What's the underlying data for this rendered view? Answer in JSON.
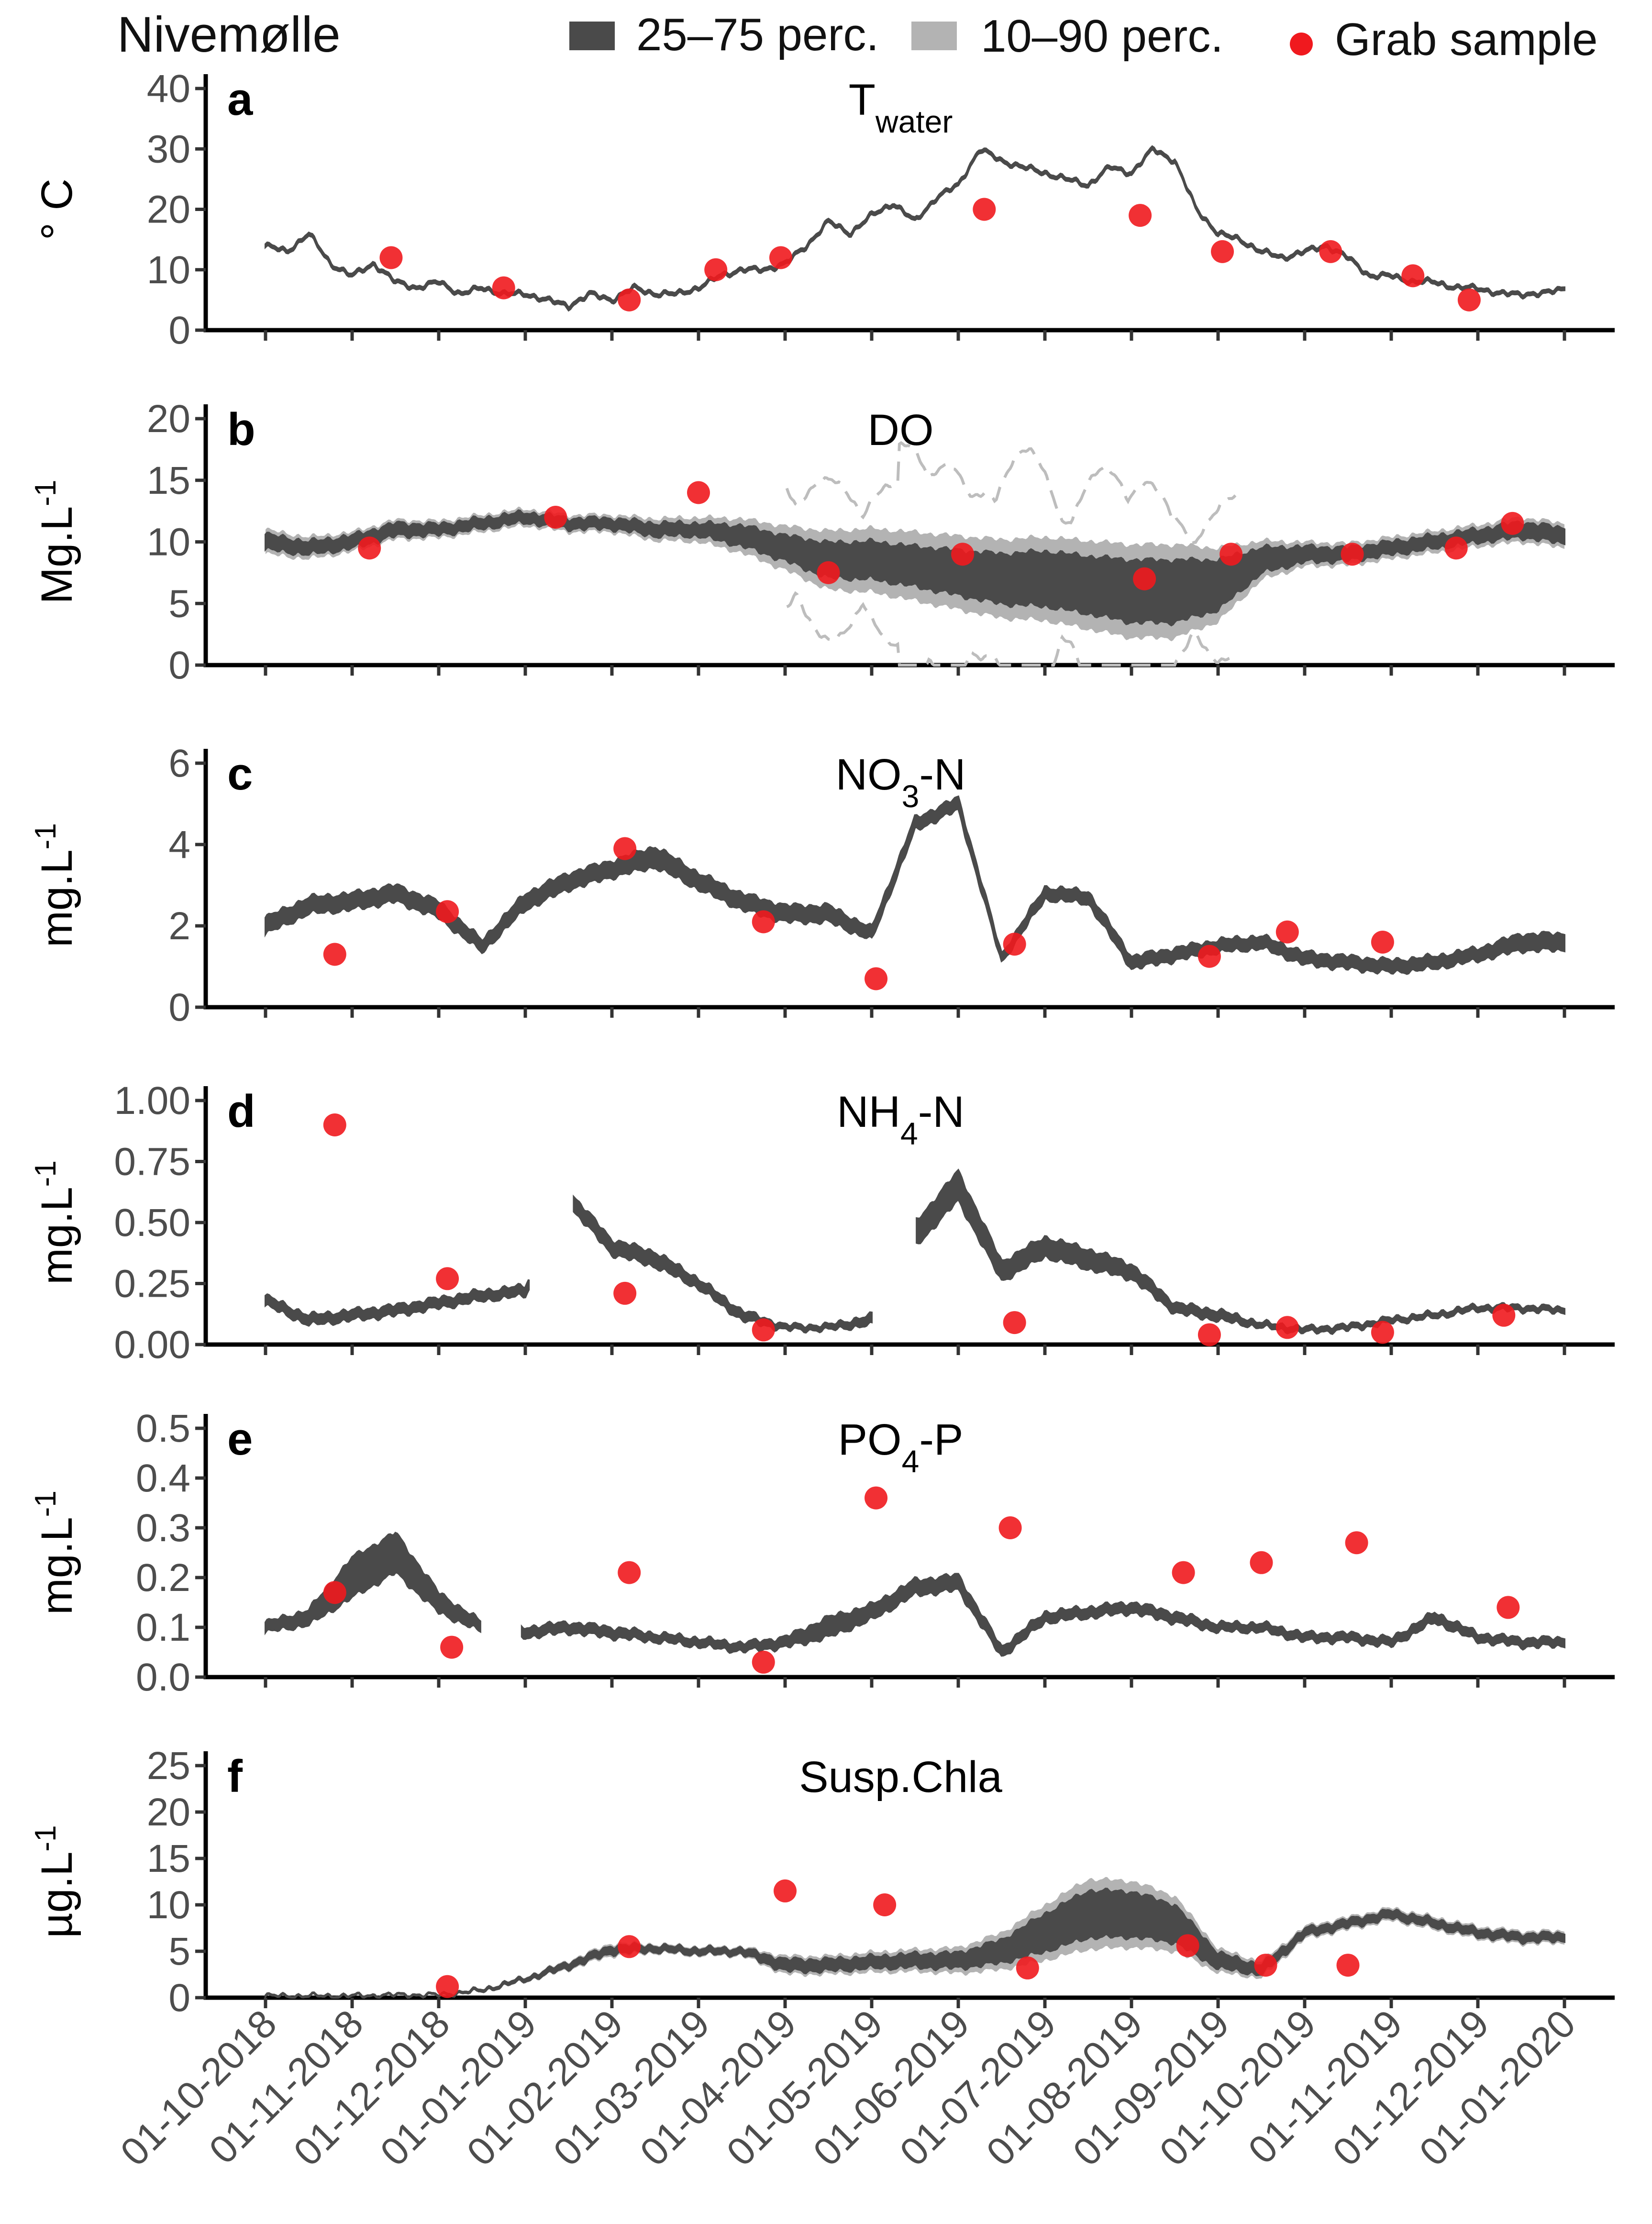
{
  "site": "Nivemølle",
  "legend": {
    "iqr_label": "25–75 perc.",
    "p1090_label": "10–90 perc.",
    "grab_label": "Grab sample"
  },
  "colors": {
    "iqr": "#4a4a4a",
    "p1090": "#b3b3b3",
    "grab": "#f0191e",
    "dashed": "#bdbdbd"
  },
  "x_ticks": [
    "01-10-2018",
    "01-11-2018",
    "01-12-2018",
    "01-01-2019",
    "01-02-2019",
    "01-03-2019",
    "01-04-2019",
    "01-05-2019",
    "01-06-2019",
    "01-07-2019",
    "01-08-2019",
    "01-09-2019",
    "01-10-2019",
    "01-11-2019",
    "01-12-2019",
    "01-01-2020"
  ],
  "chart_data": [
    {
      "type": "area",
      "panel": "a",
      "title": "Twater",
      "title_main": "T",
      "title_sub": "water",
      "ylabel": "° C",
      "ylim": [
        0,
        40
      ],
      "yticks": [
        "0",
        "10",
        "20",
        "30",
        "40"
      ],
      "series_months": [
        0,
        0.25,
        0.5,
        0.75,
        1,
        1.25,
        1.5,
        1.75,
        2,
        2.25,
        2.5,
        2.75,
        3,
        3.25,
        3.5,
        3.75,
        4,
        4.25,
        4.5,
        4.75,
        5,
        5.25,
        5.5,
        5.75,
        6,
        6.25,
        6.5,
        6.75,
        7,
        7.25,
        7.5,
        7.75,
        8,
        8.25,
        8.5,
        8.75,
        9,
        9.25,
        9.5,
        9.75,
        10,
        10.25,
        10.5,
        10.75,
        11,
        11.25,
        11.5,
        11.75,
        12,
        12.25,
        12.5,
        12.75,
        13,
        13.25,
        13.5,
        13.75,
        14,
        14.25,
        14.5,
        14.75,
        15
      ],
      "median": [
        14,
        13,
        16,
        11,
        9,
        11,
        8,
        7,
        8,
        6,
        7,
        6,
        6,
        5,
        4,
        6,
        5,
        7,
        6,
        6,
        7,
        9,
        10,
        10,
        11,
        14,
        18,
        16,
        19,
        21,
        18,
        22,
        24,
        30,
        28,
        27,
        26,
        25,
        24,
        27,
        26,
        30,
        28,
        20,
        16,
        15,
        13,
        12,
        13,
        14,
        12,
        9,
        9,
        8,
        8,
        7,
        7,
        6,
        6,
        6,
        7
      ],
      "grab_months": [
        1.45,
        2.75,
        4.2,
        5.2,
        5.95,
        8.3,
        10.1,
        11.05,
        12.3,
        13.25,
        13.9
      ],
      "grab_values": [
        12,
        7,
        5,
        10,
        12,
        20,
        19,
        13,
        13,
        9,
        5
      ]
    },
    {
      "type": "area",
      "panel": "b",
      "title": "DO",
      "ylabel": "Mg.L-1",
      "ylabel_main": "Mg.L",
      "ylabel_sup": "-1",
      "ylim": [
        0,
        20
      ],
      "yticks": [
        "0",
        "5",
        "10",
        "15",
        "20"
      ],
      "series_months": [
        0,
        0.5,
        1,
        1.5,
        2,
        2.5,
        3,
        3.5,
        4,
        4.5,
        5,
        5.5,
        6,
        6.5,
        7,
        7.5,
        8,
        8.5,
        9,
        9.5,
        10,
        10.5,
        11,
        11.5,
        12,
        12.5,
        13,
        13.5,
        14,
        14.5,
        15
      ],
      "median": [
        10,
        9.5,
        10,
        11,
        11,
        11.5,
        12,
        11.5,
        11.5,
        11,
        11,
        10.5,
        9.5,
        8.5,
        8.5,
        8,
        7.5,
        7,
        7,
        6.5,
        6,
        6,
        6.5,
        8.5,
        9,
        9,
        9.5,
        10,
        10.5,
        11,
        10.5
      ],
      "iqr_half": [
        0.6,
        0.5,
        0.5,
        0.5,
        0.4,
        0.4,
        0.4,
        0.4,
        0.4,
        0.5,
        0.5,
        0.8,
        1,
        1.4,
        1.5,
        1.6,
        1.8,
        2,
        2.2,
        2.3,
        2.5,
        2.5,
        2,
        1,
        0.6,
        0.5,
        0.5,
        0.5,
        0.5,
        0.6,
        0.6
      ],
      "p1090_half": [
        1,
        0.9,
        0.8,
        0.8,
        0.7,
        0.7,
        0.7,
        0.7,
        0.7,
        0.9,
        1,
        1.4,
        1.8,
        2.4,
        2.6,
        2.8,
        3,
        3.2,
        3.4,
        3.6,
        3.8,
        3.8,
        3,
        1.6,
        1,
        0.9,
        0.9,
        0.9,
        0.9,
        1,
        1
      ],
      "grab_months": [
        1.2,
        3.35,
        5.0,
        6.5,
        8.05,
        10.15,
        11.15,
        12.55,
        13.75,
        14.4
      ],
      "grab_values": [
        9.5,
        12,
        14,
        7.5,
        9,
        7,
        9,
        9,
        9.5,
        11.5
      ]
    },
    {
      "type": "area",
      "panel": "c",
      "title": "NO3-N",
      "title_main": "NO",
      "title_sub": "3",
      "title_tail": "-N",
      "ylabel": "mg.L-1",
      "ylabel_main": "mg.L",
      "ylabel_sup": "-1",
      "ylim": [
        0,
        6
      ],
      "yticks": [
        "0",
        "2",
        "4",
        "6"
      ],
      "series_months": [
        0,
        0.5,
        1,
        1.5,
        2,
        2.5,
        3,
        3.5,
        4,
        4.5,
        5,
        5.5,
        6,
        6.5,
        7,
        7.5,
        8,
        8.5,
        9,
        9.5,
        10,
        10.5,
        11,
        11.5,
        12,
        12.5,
        13,
        13.5,
        14,
        14.5,
        15
      ],
      "median": [
        2,
        2.5,
        2.6,
        2.8,
        2.4,
        1.5,
        2.6,
        3.1,
        3.4,
        3.7,
        3.1,
        2.6,
        2.3,
        2.3,
        1.8,
        4.5,
        5,
        1.2,
        2.8,
        2.7,
        1.1,
        1.3,
        1.5,
        1.6,
        1.2,
        1.1,
        1.0,
        1.1,
        1.3,
        1.6,
        1.6
      ],
      "iqr_half": [
        0.2,
        0.2,
        0.2,
        0.2,
        0.2,
        0.15,
        0.2,
        0.2,
        0.2,
        0.25,
        0.2,
        0.2,
        0.2,
        0.2,
        0.15,
        0.15,
        0.15,
        0.1,
        0.15,
        0.15,
        0.15,
        0.15,
        0.15,
        0.15,
        0.15,
        0.15,
        0.15,
        0.15,
        0.15,
        0.2,
        0.2
      ],
      "grab_months": [
        0.8,
        2.1,
        4.15,
        5.75,
        7.05,
        8.65,
        10.9,
        11.8,
        12.9
      ],
      "grab_values": [
        1.3,
        2.35,
        3.9,
        2.1,
        0.7,
        1.55,
        1.25,
        1.85,
        1.6
      ]
    },
    {
      "type": "area",
      "panel": "d",
      "title": "NH4-N",
      "title_main": "NH",
      "title_sub": "4",
      "title_tail": "-N",
      "ylabel": "mg.L-1",
      "ylabel_main": "mg.L",
      "ylabel_sup": "-1",
      "ylim": [
        0,
        1
      ],
      "yticks": [
        "0.00",
        "0.25",
        "0.50",
        "0.75",
        "1.00"
      ],
      "series_months": [
        0,
        0.5,
        1,
        1.5,
        2,
        2.5,
        3,
        3.5,
        4,
        4.5,
        5,
        5.5,
        6,
        6.5,
        7,
        7.5,
        8,
        8.5,
        9,
        9.5,
        10,
        10.5,
        11,
        11.5,
        12,
        12.5,
        13,
        13.5,
        14,
        14.5,
        15
      ],
      "median": [
        0.18,
        0.1,
        0.12,
        0.14,
        0.17,
        0.2,
        0.22,
        0.6,
        0.4,
        0.35,
        0.25,
        0.12,
        0.07,
        0.07,
        0.1,
        0.45,
        0.65,
        0.3,
        0.4,
        0.35,
        0.3,
        0.15,
        0.12,
        0.08,
        0.06,
        0.07,
        0.1,
        0.12,
        0.15,
        0.15,
        0.14
      ],
      "iqr_half": [
        0.02,
        0.02,
        0.02,
        0.02,
        0.02,
        0.02,
        0.02,
        0.03,
        0.03,
        0.03,
        0.02,
        0.02,
        0.01,
        0.01,
        0.02,
        0.05,
        0.06,
        0.04,
        0.04,
        0.04,
        0.03,
        0.02,
        0.02,
        0.01,
        0.01,
        0.01,
        0.01,
        0.01,
        0.01,
        0.01,
        0.01
      ],
      "gaps": [
        [
          3.05,
          3.55
        ],
        [
          7.0,
          7.5
        ]
      ],
      "grab_months": [
        0.8,
        2.1,
        4.15,
        5.75,
        8.65,
        10.9,
        11.8,
        12.9,
        14.3
      ],
      "grab_values": [
        0.9,
        0.27,
        0.21,
        0.06,
        0.09,
        0.04,
        0.07,
        0.05,
        0.12
      ]
    },
    {
      "type": "area",
      "panel": "e",
      "title": "PO4-P",
      "title_main": "PO",
      "title_sub": "4",
      "title_tail": "-P",
      "ylabel": "mg.L-1",
      "ylabel_main": "mg.L",
      "ylabel_sup": "-1",
      "ylim": [
        0,
        0.5
      ],
      "yticks": [
        "0.0",
        "0.1",
        "0.2",
        "0.3",
        "0.4",
        "0.5"
      ],
      "series_months": [
        0,
        0.5,
        1,
        1.5,
        2,
        2.5,
        3,
        3.5,
        4,
        4.5,
        5,
        5.5,
        6,
        6.5,
        7,
        7.5,
        8,
        8.5,
        9,
        9.5,
        10,
        10.5,
        11,
        11.5,
        12,
        12.5,
        13,
        13.5,
        14,
        14.5,
        15
      ],
      "median": [
        0.1,
        0.12,
        0.2,
        0.25,
        0.15,
        0.1,
        0.09,
        0.1,
        0.09,
        0.08,
        0.07,
        0.06,
        0.07,
        0.1,
        0.13,
        0.18,
        0.19,
        0.05,
        0.12,
        0.13,
        0.14,
        0.12,
        0.1,
        0.1,
        0.08,
        0.08,
        0.07,
        0.12,
        0.08,
        0.07,
        0.07
      ],
      "iqr_half": [
        0.01,
        0.015,
        0.04,
        0.04,
        0.02,
        0.01,
        0.01,
        0.01,
        0.01,
        0.008,
        0.008,
        0.008,
        0.01,
        0.02,
        0.015,
        0.015,
        0.015,
        0.01,
        0.01,
        0.01,
        0.01,
        0.01,
        0.008,
        0.008,
        0.008,
        0.008,
        0.008,
        0.01,
        0.008,
        0.008,
        0.008
      ],
      "gaps": [
        [
          2.5,
          2.95
        ]
      ],
      "grab_months": [
        0.8,
        2.15,
        4.2,
        5.75,
        7.05,
        8.6,
        10.6,
        11.5,
        12.6,
        14.35
      ],
      "grab_values": [
        0.17,
        0.06,
        0.21,
        0.03,
        0.36,
        0.3,
        0.21,
        0.23,
        0.27,
        0.14
      ]
    },
    {
      "type": "area",
      "panel": "f",
      "title": "Susp.Chla",
      "ylabel": "µg.L-1",
      "ylabel_main": "µg.L",
      "ylabel_sup": "-1",
      "ylim": [
        0,
        25
      ],
      "yticks": [
        "0",
        "5",
        "10",
        "15",
        "20",
        "25"
      ],
      "series_months": [
        0,
        0.5,
        1,
        1.5,
        2,
        2.5,
        3,
        3.5,
        4,
        4.5,
        5,
        5.5,
        6,
        6.5,
        7,
        7.5,
        8,
        8.5,
        9,
        9.5,
        10,
        10.5,
        11,
        11.5,
        12,
        12.5,
        13,
        13.5,
        14,
        14.5,
        15
      ],
      "median": [
        0.2,
        0.2,
        0.2,
        0.3,
        0.3,
        0.8,
        2,
        3.5,
        5.2,
        5.3,
        5,
        5,
        3.5,
        3.5,
        3.8,
        4,
        4,
        5,
        7,
        9,
        9,
        8,
        4,
        3,
        7,
        8,
        9,
        8,
        7,
        6.5,
        6.5
      ],
      "iqr_half": [
        0.05,
        0.05,
        0.05,
        0.05,
        0.05,
        0.1,
        0.15,
        0.3,
        0.4,
        0.3,
        0.3,
        0.3,
        0.6,
        0.6,
        0.6,
        0.7,
        0.8,
        1.2,
        2,
        2.5,
        2.4,
        2,
        0.8,
        0.5,
        0.4,
        0.4,
        0.4,
        0.4,
        0.4,
        0.4,
        0.4
      ],
      "p1090_half": [
        0.1,
        0.1,
        0.1,
        0.1,
        0.1,
        0.2,
        0.3,
        0.5,
        0.7,
        0.5,
        0.5,
        0.5,
        1,
        1,
        1.1,
        1.2,
        1.4,
        2,
        3,
        3.8,
        3.6,
        3,
        1.3,
        0.9,
        0.7,
        0.7,
        0.7,
        0.7,
        0.7,
        0.7,
        0.7
      ],
      "grab_months": [
        2.1,
        4.2,
        6.0,
        7.15,
        8.8,
        10.65,
        11.55,
        12.5
      ],
      "grab_values": [
        1.2,
        5.5,
        11.5,
        10,
        3.2,
        5.6,
        3.5,
        3.5
      ]
    }
  ]
}
